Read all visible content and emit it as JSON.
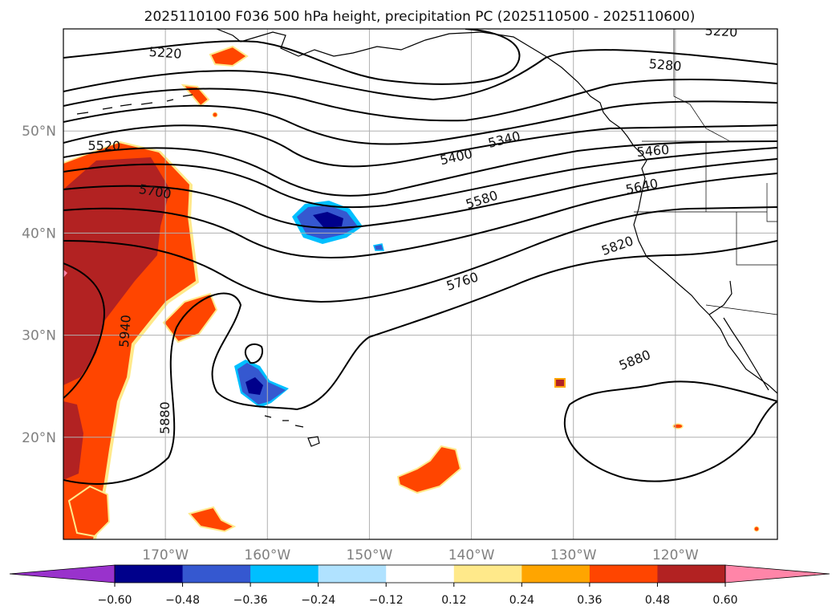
{
  "title": "2025110100 F036 500 hPa height, precipitation PC (2025110500 - 2025110600)",
  "map": {
    "lon_range": [
      -180,
      -110
    ],
    "lat_range": [
      10,
      60
    ],
    "lon_ticks": [
      {
        "value": -170,
        "label": "170°W"
      },
      {
        "value": -160,
        "label": "160°W"
      },
      {
        "value": -150,
        "label": "150°W"
      },
      {
        "value": -140,
        "label": "140°W"
      },
      {
        "value": -130,
        "label": "130°W"
      },
      {
        "value": -120,
        "label": "120°W"
      }
    ],
    "lat_ticks": [
      {
        "value": 20,
        "label": "20°N"
      },
      {
        "value": 30,
        "label": "30°N"
      },
      {
        "value": 40,
        "label": "40°N"
      },
      {
        "value": 50,
        "label": "50°N"
      }
    ],
    "gridlines": true,
    "contour_labels": [
      {
        "text": "5220",
        "lon": -170,
        "lat": 57.7,
        "angle": 4
      },
      {
        "text": "5280",
        "lon": -121,
        "lat": 56.5,
        "angle": 5
      },
      {
        "text": "5220",
        "lon": -115.5,
        "lat": 59.8,
        "angle": 3
      },
      {
        "text": "5340",
        "lon": -136.8,
        "lat": 49.2,
        "angle": -14
      },
      {
        "text": "5400",
        "lon": -141.5,
        "lat": 47.5,
        "angle": -13
      },
      {
        "text": "5460",
        "lon": -122.2,
        "lat": 48.1,
        "angle": -5
      },
      {
        "text": "5520",
        "lon": -176,
        "lat": 48.6,
        "angle": 0
      },
      {
        "text": "5580",
        "lon": -139,
        "lat": 43.3,
        "angle": -18
      },
      {
        "text": "5640",
        "lon": -123.3,
        "lat": 44.6,
        "angle": -12
      },
      {
        "text": "5700",
        "lon": -171,
        "lat": 44.1,
        "angle": 10
      },
      {
        "text": "5760",
        "lon": -140.9,
        "lat": 35.3,
        "angle": -18
      },
      {
        "text": "5820",
        "lon": -125.7,
        "lat": 38.8,
        "angle": -20
      },
      {
        "text": "5880",
        "lon": -124,
        "lat": 27.6,
        "angle": -22
      },
      {
        "text": "5880",
        "lon": -170.1,
        "lat": 21.9,
        "angle": -90
      },
      {
        "text": "5940",
        "lon": -174,
        "lat": 30.4,
        "angle": -86
      }
    ]
  },
  "colorbar": {
    "colors": [
      "#9932cc",
      "#00008b",
      "#3558d0",
      "#00bfff",
      "#b0e2ff",
      "#ffffff",
      "#ffe98a",
      "#ffa500",
      "#ff4500",
      "#b22222",
      "#ff85a8"
    ],
    "tick_labels": [
      "−0.60",
      "−0.48",
      "−0.36",
      "−0.24",
      "−0.12",
      "0.12",
      "0.24",
      "0.36",
      "0.48",
      "0.60"
    ]
  }
}
